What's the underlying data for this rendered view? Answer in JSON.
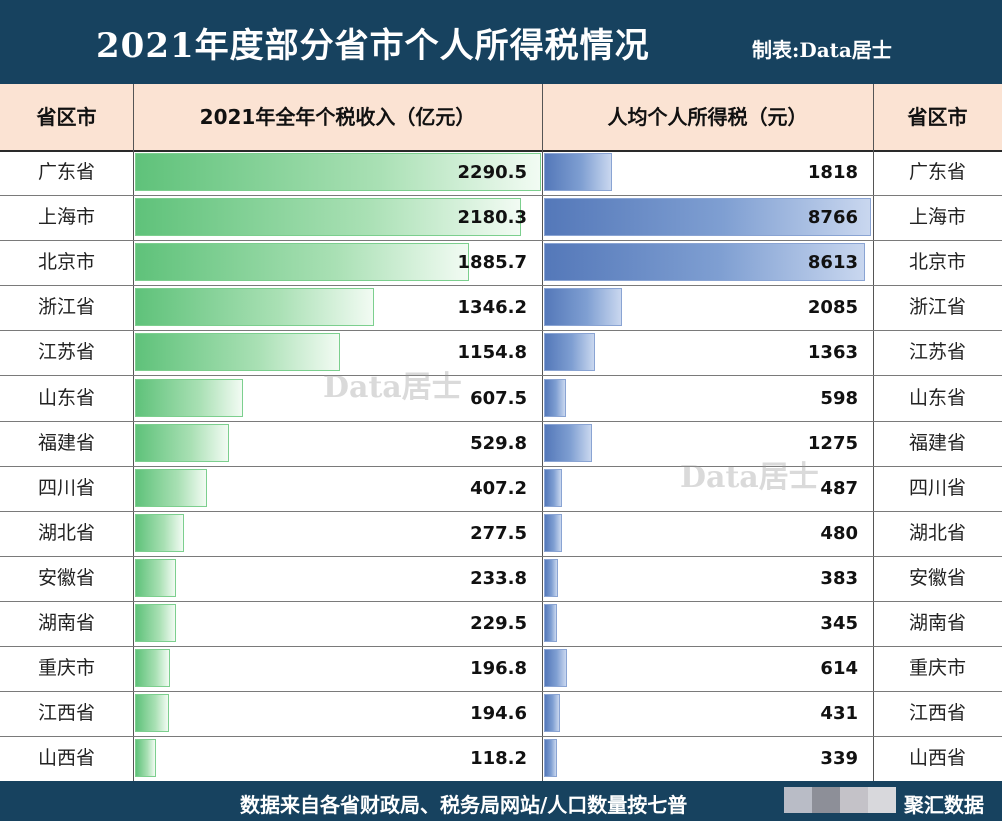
{
  "header": {
    "title": "2021年度部分省市个人所得税情况",
    "author": "制表:Data居士"
  },
  "columns": {
    "province_left": "省区市",
    "total": "2021年全年个税收入（亿元）",
    "per_capita": "人均个人所得税（元）",
    "province_right": "省区市"
  },
  "chart_data": {
    "type": "bar",
    "categories": [
      "广东省",
      "上海市",
      "北京市",
      "浙江省",
      "江苏省",
      "山东省",
      "福建省",
      "四川省",
      "湖北省",
      "安徽省",
      "湖南省",
      "重庆市",
      "江西省",
      "山西省"
    ],
    "series": [
      {
        "name": "2021年全年个税收入（亿元）",
        "values": [
          2290.5,
          2180.3,
          1885.7,
          1346.2,
          1154.8,
          607.5,
          529.8,
          407.2,
          277.5,
          233.8,
          229.5,
          196.8,
          194.6,
          118.2
        ],
        "labels": [
          "2290.5",
          "2180.3",
          "1885.7",
          "1346.2",
          "1154.8",
          "607.5",
          "529.8",
          "407.2",
          "277.5",
          "233.8",
          "229.5",
          "196.8",
          "194.6",
          "118.2"
        ],
        "max": 2290.5
      },
      {
        "name": "人均个人所得税（元）",
        "values": [
          1818,
          8766,
          8613,
          2085,
          1363,
          598,
          1275,
          487,
          480,
          383,
          345,
          614,
          431,
          339
        ],
        "labels": [
          "1818",
          "8766",
          "8613",
          "2085",
          "1363",
          "598",
          "1275",
          "487",
          "480",
          "383",
          "345",
          "614",
          "431",
          "339"
        ],
        "max": 8766
      }
    ],
    "colors": {
      "total": "#5fc27a",
      "per_capita": "#5478b9"
    }
  },
  "watermark": "Data居士",
  "footer": {
    "source": "数据来自各省财政局、税务局网站/人口数量按七普",
    "brand": "聚汇数据"
  }
}
